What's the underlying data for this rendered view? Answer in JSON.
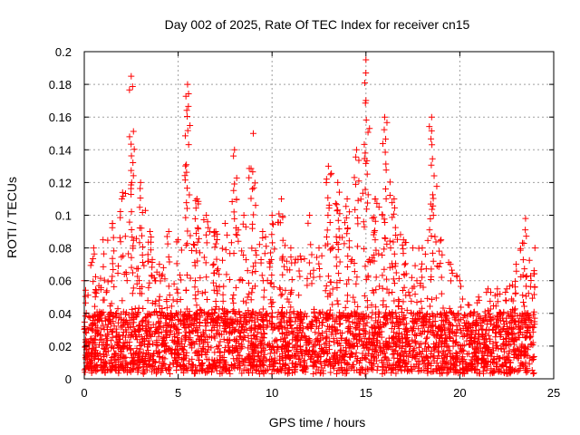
{
  "chart_data": {
    "type": "scatter",
    "title": "Day 002 of 2025, Rate Of TEC Index for receiver cn15",
    "xlabel": "GPS time / hours",
    "ylabel": "ROTI / TECUs",
    "xlim": [
      0,
      25
    ],
    "ylim": [
      0,
      0.2
    ],
    "x_ticks": [
      "0",
      "5",
      "10",
      "15",
      "20",
      "25"
    ],
    "y_ticks": [
      "0",
      "0.02",
      "0.04",
      "0.06",
      "0.08",
      "0.1",
      "0.12",
      "0.14",
      "0.16",
      "0.18",
      "0.2"
    ],
    "grid": true,
    "marker": "+",
    "marker_color": "#ff0000",
    "series": [
      {
        "x_range": [
          0.0,
          24.0
        ],
        "profile": [
          [
            0.0,
            0.06
          ],
          [
            0.5,
            0.08
          ],
          [
            1.0,
            0.085
          ],
          [
            1.5,
            0.095
          ],
          [
            2.0,
            0.11
          ],
          [
            2.5,
            0.185
          ],
          [
            3.0,
            0.12
          ],
          [
            3.5,
            0.09
          ],
          [
            4.0,
            0.07
          ],
          [
            4.5,
            0.09
          ],
          [
            5.0,
            0.085
          ],
          [
            5.5,
            0.18
          ],
          [
            6.0,
            0.11
          ],
          [
            6.5,
            0.1
          ],
          [
            7.0,
            0.09
          ],
          [
            7.5,
            0.095
          ],
          [
            8.0,
            0.14
          ],
          [
            8.5,
            0.1
          ],
          [
            9.0,
            0.15
          ],
          [
            9.5,
            0.09
          ],
          [
            10.0,
            0.1
          ],
          [
            10.5,
            0.11
          ],
          [
            11.0,
            0.08
          ],
          [
            11.5,
            0.075
          ],
          [
            12.0,
            0.1
          ],
          [
            12.5,
            0.08
          ],
          [
            13.0,
            0.13
          ],
          [
            13.5,
            0.12
          ],
          [
            14.0,
            0.11
          ],
          [
            14.5,
            0.14
          ],
          [
            15.0,
            0.195
          ],
          [
            15.5,
            0.11
          ],
          [
            16.0,
            0.16
          ],
          [
            16.5,
            0.11
          ],
          [
            17.0,
            0.085
          ],
          [
            17.5,
            0.08
          ],
          [
            18.0,
            0.08
          ],
          [
            18.5,
            0.16
          ],
          [
            19.0,
            0.085
          ],
          [
            19.5,
            0.07
          ],
          [
            20.0,
            0.06
          ],
          [
            20.5,
            0.045
          ],
          [
            21.0,
            0.05
          ],
          [
            21.5,
            0.055
          ],
          [
            22.0,
            0.055
          ],
          [
            22.5,
            0.055
          ],
          [
            23.0,
            0.07
          ],
          [
            23.5,
            0.098
          ],
          [
            24.0,
            0.08
          ]
        ],
        "baseline": 0.02
      }
    ]
  }
}
